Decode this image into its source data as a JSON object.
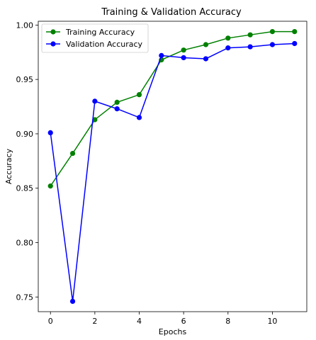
{
  "chart_data": {
    "type": "line",
    "title": "Training & Validation Accuracy",
    "xlabel": "Epochs",
    "ylabel": "Accuracy",
    "x": [
      0,
      1,
      2,
      3,
      4,
      5,
      6,
      7,
      8,
      9,
      10,
      11
    ],
    "xlim": [
      -0.55,
      11.55
    ],
    "ylim": [
      0.7365,
      1.0035
    ],
    "xticks": [
      0,
      2,
      4,
      6,
      8,
      10
    ],
    "yticks": [
      0.75,
      0.8,
      0.85,
      0.9,
      0.95,
      1.0
    ],
    "ytick_labels": [
      "0.75",
      "0.80",
      "0.85",
      "0.90",
      "0.95",
      "1.00"
    ],
    "grid": false,
    "legend_position": "top-left",
    "series": [
      {
        "name": "Training Accuracy",
        "color": "#008000",
        "values": [
          0.852,
          0.882,
          0.913,
          0.929,
          0.936,
          0.968,
          0.977,
          0.982,
          0.988,
          0.991,
          0.994,
          0.994
        ]
      },
      {
        "name": "Validation Accuracy",
        "color": "#0000ff",
        "values": [
          0.901,
          0.746,
          0.93,
          0.923,
          0.915,
          0.972,
          0.97,
          0.969,
          0.979,
          0.98,
          0.982,
          0.983
        ]
      }
    ]
  }
}
